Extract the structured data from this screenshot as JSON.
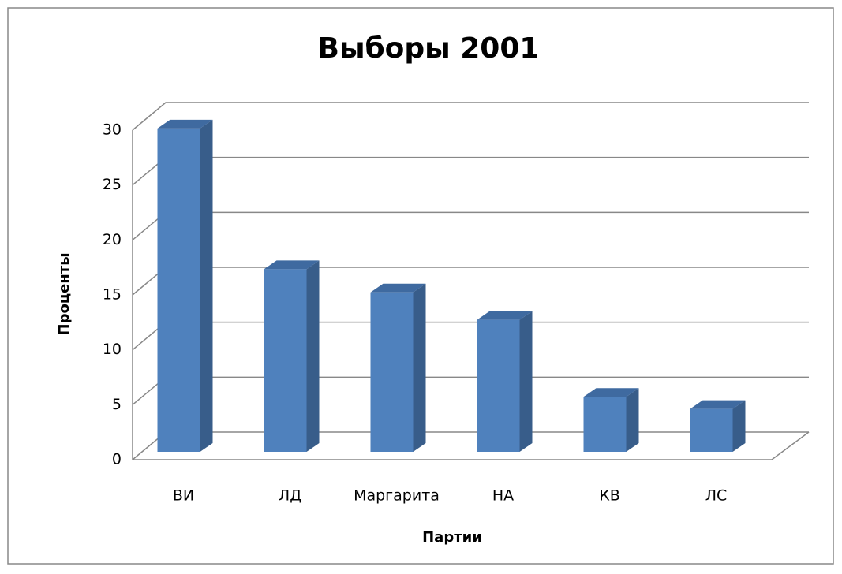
{
  "chart_data": {
    "type": "bar3d",
    "title": "Выборы 2001",
    "categories": [
      "ВИ",
      "ЛД",
      "Маргарита",
      "НА",
      "КВ",
      "ЛС"
    ],
    "values": [
      29.4,
      16.6,
      14.5,
      12.0,
      5.0,
      3.9
    ],
    "color": "#4f81bd",
    "ylim": [
      0,
      30
    ],
    "yticks": [
      0,
      5,
      10,
      15,
      20,
      25,
      30
    ],
    "grid": true,
    "x_label": "Партии",
    "y_label": "Проценты"
  }
}
